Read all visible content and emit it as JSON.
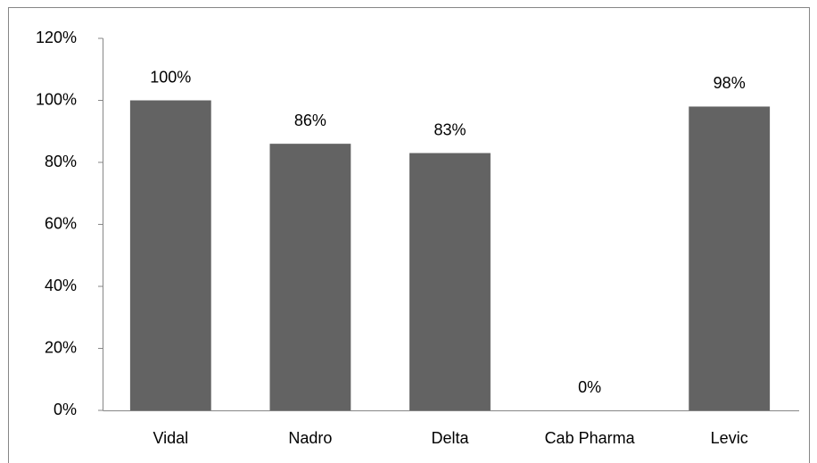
{
  "chart_data": {
    "type": "bar",
    "categories": [
      "Vidal",
      "Nadro",
      "Delta",
      "Cab Pharma",
      "Levic"
    ],
    "values": [
      100,
      86,
      83,
      0,
      98
    ],
    "value_labels": [
      "100%",
      "86%",
      "83%",
      "0%",
      "98%"
    ],
    "color": "#636363",
    "ylim": [
      0,
      120
    ],
    "yticks": [
      {
        "value": 0,
        "label": "0%"
      },
      {
        "value": 20,
        "label": "20%"
      },
      {
        "value": 40,
        "label": "40%"
      },
      {
        "value": 60,
        "label": "60%"
      },
      {
        "value": 80,
        "label": "80%"
      },
      {
        "value": 100,
        "label": "100%"
      },
      {
        "value": 120,
        "label": "120%"
      }
    ],
    "grid": false
  }
}
